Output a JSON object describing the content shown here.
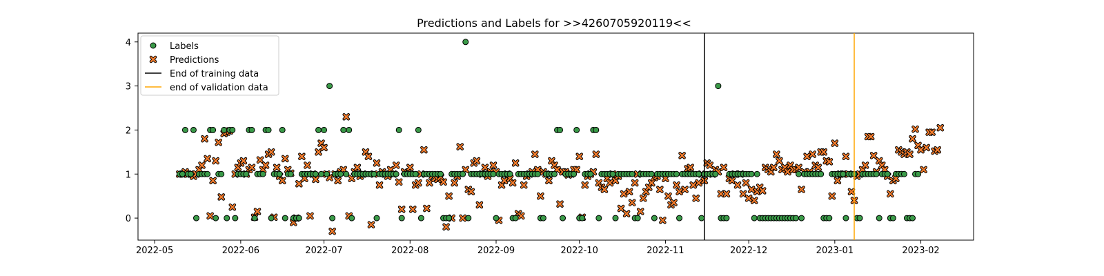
{
  "chart_data": {
    "type": "scatter",
    "title": "Predictions and Labels for >>4260705920119<<",
    "xlabel": "",
    "ylabel": "",
    "x_range": [
      "2022-04-25",
      "2023-02-20"
    ],
    "ylim": [
      -0.5,
      4.2
    ],
    "x_ticks": [
      "2022-05-01",
      "2022-06-01",
      "2022-07-01",
      "2022-08-01",
      "2022-09-01",
      "2022-10-01",
      "2022-11-01",
      "2022-12-01",
      "2023-01-01",
      "2023-02-01"
    ],
    "x_tick_labels": [
      "2022-05",
      "2022-06",
      "2022-07",
      "2022-08",
      "2022-09",
      "2022-10",
      "2022-11",
      "2022-12",
      "2023-01",
      "2023-02"
    ],
    "y_ticks": [
      0,
      1,
      2,
      3,
      4
    ],
    "grid": false,
    "legend": {
      "placement": "top-left",
      "entries": [
        {
          "label": "Labels",
          "marker": "circle",
          "color": "#3a9a48"
        },
        {
          "label": "Predictions",
          "marker": "x",
          "color": "#f47c2c"
        },
        {
          "label": "End of training data",
          "marker": "line",
          "color": "#000000"
        },
        {
          "label": "end of validation data",
          "marker": "line",
          "color": "#ffa500"
        }
      ]
    },
    "vertical_lines": [
      {
        "name": "End of training data",
        "x": "2022-11-15",
        "color": "#000000"
      },
      {
        "name": "end of validation data",
        "x": "2023-01-08",
        "color": "#ffa500"
      }
    ],
    "series": [
      {
        "name": "Labels",
        "marker": "circle",
        "color": "#3a9a48",
        "start_date": "2022-05-10",
        "values": [
          1,
          1,
          2,
          1,
          1,
          2,
          0,
          1,
          1,
          1,
          1,
          2,
          2,
          0,
          1,
          1,
          2,
          0,
          2,
          2,
          0,
          1,
          1,
          1,
          1,
          2,
          2,
          0,
          1,
          1,
          1,
          2,
          2,
          0,
          1,
          1,
          1,
          2,
          0,
          1,
          1,
          0,
          0,
          0,
          1,
          1,
          1,
          1,
          1,
          1,
          2,
          1,
          2,
          1,
          3,
          0,
          1,
          1,
          1,
          2,
          1,
          2,
          0,
          1,
          1,
          1,
          1,
          1,
          1,
          1,
          1,
          0,
          1,
          1,
          1,
          1,
          1,
          1,
          1,
          2,
          0,
          1,
          1,
          1,
          1,
          1,
          2,
          0,
          1,
          1,
          1,
          1,
          1,
          1,
          1,
          0,
          0,
          0,
          1,
          1,
          1,
          1,
          1,
          4,
          0,
          1,
          1,
          1,
          1,
          1,
          1,
          1,
          1,
          1,
          0,
          1,
          1,
          1,
          1,
          1,
          0,
          0,
          1,
          1,
          1,
          1,
          1,
          1,
          1,
          1,
          0,
          0,
          1,
          1,
          1,
          1,
          2,
          2,
          0,
          1,
          1,
          1,
          1,
          2,
          0,
          0,
          1,
          1,
          1,
          2,
          2,
          0,
          1,
          1,
          1,
          1,
          1,
          0,
          1,
          1,
          1,
          1,
          1,
          1,
          0,
          0,
          1,
          1,
          1,
          1,
          1,
          0,
          1,
          1,
          1,
          1,
          1,
          1,
          1,
          1,
          0,
          1,
          1,
          1,
          1,
          1,
          1,
          1,
          0,
          1,
          1,
          1,
          1,
          1,
          3,
          0,
          0,
          0,
          1,
          1,
          1,
          1,
          1,
          1,
          1,
          1,
          1,
          0,
          1,
          0,
          0,
          0,
          0,
          0,
          0,
          0,
          0,
          0,
          0,
          0,
          0,
          0,
          0,
          1,
          0,
          1,
          1,
          1,
          1,
          1,
          1,
          1,
          0,
          0,
          0,
          1,
          1,
          1,
          1,
          1,
          0,
          1,
          1,
          1,
          0,
          0,
          1,
          1,
          1,
          1,
          1,
          1,
          0,
          1,
          1,
          1,
          0,
          0,
          1,
          1,
          1,
          1,
          0,
          0,
          0,
          1,
          1
        ]
      },
      {
        "name": "Predictions",
        "marker": "x",
        "color": "#f47c2c",
        "start_date": "2022-05-10",
        "values": [
          1.0,
          1.0,
          1.05,
          1.0,
          1.0,
          0.95,
          1.0,
          1.1,
          1.2,
          1.8,
          1.35,
          0.05,
          0.85,
          1.3,
          1.72,
          0.48,
          1.92,
          1.95,
          1.98,
          0.25,
          1.0,
          1.15,
          1.25,
          1.3,
          1.0,
          1.1,
          1.15,
          0.02,
          0.15,
          1.32,
          1.1,
          1.2,
          1.45,
          1.5,
          0.02,
          1.15,
          0.95,
          0.85,
          1.35,
          1.1,
          1.02,
          -0.1,
          0.0,
          0.78,
          1.4,
          0.9,
          1.2,
          0.05,
          1.0,
          0.88,
          1.5,
          1.7,
          1.6,
          1.0,
          0.92,
          -0.3,
          1.0,
          0.85,
          1.05,
          1.1,
          2.3,
          0.05,
          0.9,
          1.05,
          1.15,
          0.95,
          1.0,
          1.5,
          1.4,
          -0.15,
          1.0,
          1.25,
          0.75,
          1.05,
          1.0,
          0.95,
          1.1,
          1.0,
          1.2,
          0.82,
          0.2,
          1.05,
          1.02,
          1.15,
          0.2,
          0.75,
          0.8,
          1.0,
          1.55,
          0.22,
          0.8,
          0.95,
          0.9,
          0.88,
          0.93,
          0.82,
          -0.2,
          0.5,
          0.0,
          0.8,
          0.95,
          1.62,
          0.0,
          1.1,
          0.65,
          0.6,
          1.25,
          1.3,
          0.3,
          1.0,
          1.15,
          0.95,
          1.05,
          1.2,
          1.05,
          -0.05,
          0.75,
          0.85,
          1.0,
          0.9,
          0.8,
          1.25,
          0.1,
          0.05,
          0.75,
          0.95,
          1.0,
          1.05,
          1.45,
          1.1,
          0.5,
          1.05,
          1.0,
          0.85,
          1.3,
          1.2,
          1.1,
          0.32,
          1.05,
          1.05,
          0.98,
          1.0,
          1.1,
          1.1,
          1.4,
          0.02,
          0.75,
          0.95,
          1.0,
          1.05,
          1.45,
          0.8,
          0.7,
          0.65,
          0.9,
          0.8,
          1.0,
          0.85,
          0.95,
          0.22,
          0.55,
          0.1,
          0.6,
          0.35,
          0.8,
          1.0,
          0.15,
          0.45,
          0.6,
          0.7,
          0.8,
          0.92,
          0.95,
          0.65,
          -0.05,
          0.9,
          0.5,
          0.3,
          0.35,
          0.75,
          0.6,
          1.42,
          0.65,
          1.12,
          1.15,
          0.75,
          0.45,
          0.8,
          1.0,
          0.85,
          1.25,
          1.2,
          1.0,
          1.1,
          1.05,
          0.55,
          1.15,
          0.55,
          0.9,
          0.85,
          1.0,
          0.75,
          1.0,
          0.55,
          0.8,
          0.45,
          0.65,
          0.4,
          0.6,
          0.7,
          0.62,
          1.15,
          1.1,
          1.05,
          1.15,
          1.45,
          1.3,
          1.1,
          1.15,
          1.05,
          1.2,
          1.1,
          1.1,
          1.15,
          0.65,
          1.05,
          1.4,
          1.05,
          1.45,
          1.2,
          1.15,
          1.5,
          1.5,
          1.3,
          1.28,
          0.5,
          1.7,
          0.85,
          1.0,
          1.0,
          1.4,
          1.0,
          0.6,
          0.4,
          0.95,
          1.0,
          1.1,
          1.2,
          1.85,
          1.85,
          1.42,
          1.05,
          1.3,
          1.2,
          1.1,
          0.95,
          0.55,
          0.85,
          0.9,
          1.55,
          1.5,
          1.45,
          1.5,
          1.45,
          1.8,
          2.02,
          1.65,
          1.55,
          1.1,
          1.6,
          1.95,
          1.95,
          1.52,
          1.55,
          2.05
        ]
      }
    ]
  }
}
